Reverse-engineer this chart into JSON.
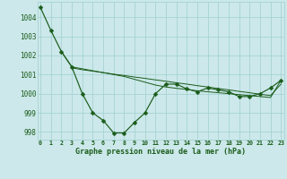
{
  "line1_x": [
    0,
    1,
    2,
    3,
    4,
    5,
    6,
    7,
    8,
    9,
    10,
    11,
    12,
    13,
    14,
    15,
    16,
    17,
    18,
    19,
    20,
    21,
    22,
    23
  ],
  "line1_y": [
    1004.5,
    1003.3,
    1002.2,
    1001.4,
    1000.0,
    999.0,
    998.6,
    997.95,
    997.95,
    998.5,
    999.0,
    1000.0,
    1000.5,
    1000.5,
    1000.25,
    1000.1,
    1000.3,
    1000.2,
    1000.1,
    999.85,
    999.85,
    1000.0,
    1000.3,
    1000.7
  ],
  "line2_x": [
    2,
    3,
    4,
    5,
    6,
    7,
    8,
    9,
    10,
    11,
    12,
    13,
    14,
    15,
    16,
    17,
    18,
    19,
    20,
    21,
    22,
    23
  ],
  "line2_y": [
    1002.2,
    1001.4,
    1001.3,
    1001.2,
    1001.1,
    1001.0,
    1000.9,
    1000.75,
    1000.6,
    1000.45,
    1000.35,
    1000.28,
    1000.22,
    1000.15,
    1000.1,
    1000.05,
    1000.0,
    999.95,
    999.9,
    999.85,
    999.8,
    1000.7
  ],
  "line3_x": [
    3,
    4,
    5,
    6,
    7,
    8,
    9,
    10,
    11,
    12,
    13,
    14,
    15,
    16,
    17,
    18,
    19,
    20,
    21,
    22,
    23
  ],
  "line3_y": [
    1001.35,
    1001.25,
    1001.18,
    1001.1,
    1001.02,
    1000.95,
    1000.87,
    1000.8,
    1000.72,
    1000.65,
    1000.57,
    1000.5,
    1000.42,
    1000.35,
    1000.27,
    1000.2,
    1000.12,
    1000.05,
    999.97,
    999.9,
    1000.5
  ],
  "xlim": [
    -0.3,
    23.3
  ],
  "ylim": [
    997.6,
    1004.8
  ],
  "yticks": [
    998,
    999,
    1000,
    1001,
    1002,
    1003,
    1004
  ],
  "xticks": [
    0,
    1,
    2,
    3,
    4,
    5,
    6,
    7,
    8,
    9,
    10,
    11,
    12,
    13,
    14,
    15,
    16,
    17,
    18,
    19,
    20,
    21,
    22,
    23
  ],
  "xlabel": "Graphe pression niveau de la mer (hPa)",
  "line_color": "#1a5c1a",
  "bg_color": "#cce8ea",
  "grid_color": "#9fcfcf"
}
